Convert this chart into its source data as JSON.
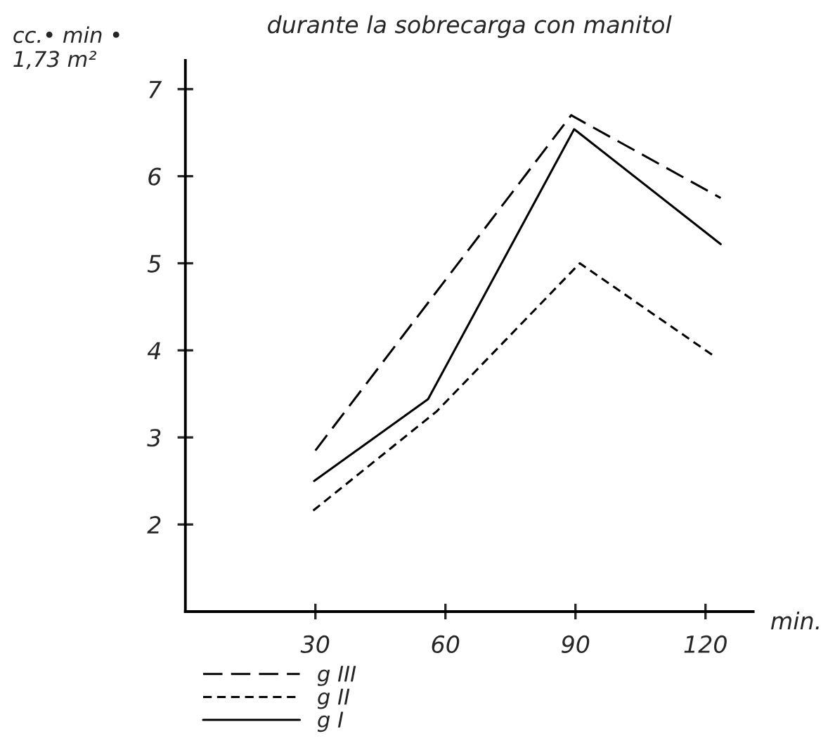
{
  "chart_data": {
    "type": "line",
    "title": "durante la sobrecarga con manitol",
    "xlabel": "min.",
    "ylabel": "cc.• min •\n1,73 m²",
    "xlim": [
      0,
      131
    ],
    "xticks": [
      30,
      60,
      90,
      120
    ],
    "ylim": [
      1,
      7.33
    ],
    "yticks": [
      2,
      3,
      4,
      5,
      6,
      7
    ],
    "grid": false,
    "legend": "bottom",
    "marker": "none",
    "series": [
      {
        "name": "g III",
        "color": "#000000",
        "line_style": "dashed",
        "x": [
          30,
          89,
          123.5
        ],
        "values": [
          2.85,
          6.7,
          5.75
        ]
      },
      {
        "name": "g II",
        "color": "#000000",
        "line_style": "dotted",
        "x": [
          29.5,
          58,
          91,
          121.5
        ],
        "values": [
          2.16,
          3.3,
          5.0,
          3.95
        ]
      },
      {
        "name": "g I",
        "color": "#000000",
        "line_style": "solid",
        "x": [
          29.7,
          56,
          89.7,
          123.5
        ],
        "values": [
          2.5,
          3.44,
          6.54,
          5.22
        ]
      }
    ]
  }
}
